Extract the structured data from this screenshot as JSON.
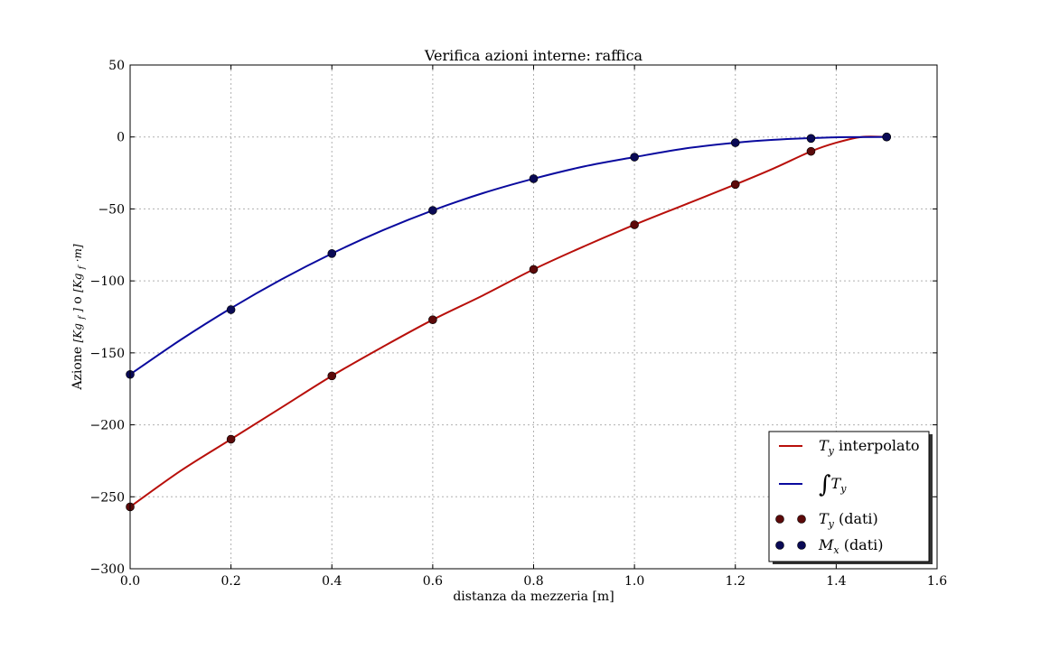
{
  "chart_data": {
    "type": "line",
    "title": "Verifica azioni interne: raffica",
    "xlabel": "distanza da mezzeria [m]",
    "ylabel": {
      "prefix": "Azione ",
      "unit1_base": "[Kg",
      "unit1_sub": "f",
      "unit1_end": "]",
      "middle": " o ",
      "unit2_base": "[Kg",
      "unit2_sub": "f",
      "unit2_end": "·m]"
    },
    "xlim": [
      0.0,
      1.6
    ],
    "ylim": [
      -300,
      50
    ],
    "xticks": [
      0.0,
      0.2,
      0.4,
      0.6,
      0.8,
      1.0,
      1.2,
      1.4,
      1.6
    ],
    "xtick_labels": [
      "0.0",
      "0.2",
      "0.4",
      "0.6",
      "0.8",
      "1.0",
      "1.2",
      "1.4",
      "1.6"
    ],
    "yticks": [
      50,
      0,
      -50,
      -100,
      -150,
      -200,
      -250,
      -300
    ],
    "ytick_labels": [
      "50",
      "0",
      "−50",
      "−100",
      "−150",
      "−200",
      "−250",
      "−300"
    ],
    "grid": true,
    "legend_position": "lower-right",
    "series": [
      {
        "name": "T_y interpolato",
        "kind": "line",
        "color": "#b80f0a",
        "x": [
          0.0,
          0.1,
          0.2,
          0.3,
          0.4,
          0.5,
          0.6,
          0.7,
          0.8,
          0.9,
          1.0,
          1.1,
          1.2,
          1.275,
          1.35,
          1.4,
          1.45,
          1.5
        ],
        "y": [
          -257,
          -232,
          -210,
          -188,
          -166,
          -146,
          -127,
          -110,
          -92,
          -76,
          -61,
          -47,
          -33,
          -22,
          -10,
          -4,
          0,
          0
        ]
      },
      {
        "name": "∫T_y",
        "kind": "line",
        "color": "#0a0a9e",
        "x": [
          0.0,
          0.1,
          0.2,
          0.3,
          0.4,
          0.5,
          0.6,
          0.7,
          0.8,
          0.9,
          1.0,
          1.1,
          1.2,
          1.275,
          1.35,
          1.425,
          1.5
        ],
        "y": [
          -165,
          -141,
          -119,
          -99,
          -81,
          -65,
          -51,
          -39,
          -29,
          -20.5,
          -14,
          -8,
          -4,
          -2,
          -0.8,
          -0.1,
          0
        ]
      },
      {
        "name": "T_y (dati)",
        "kind": "scatter",
        "color": "#5c0a0a",
        "x": [
          0.0,
          0.2,
          0.4,
          0.6,
          0.8,
          1.0,
          1.2,
          1.35,
          1.5
        ],
        "y": [
          -257,
          -210,
          -166,
          -127,
          -92,
          -61,
          -33,
          -10,
          0
        ]
      },
      {
        "name": "M_x (dati)",
        "kind": "scatter",
        "color": "#0a0a55",
        "x": [
          0.0,
          0.2,
          0.4,
          0.6,
          0.8,
          1.0,
          1.2,
          1.35,
          1.5
        ],
        "y": [
          -165,
          -120,
          -81,
          -51,
          -29,
          -14,
          -4,
          -1,
          0
        ]
      }
    ],
    "legend": [
      {
        "sym": "T",
        "sub": "y",
        "text": " interpolato"
      },
      {
        "sym": "∫T",
        "sub": "y",
        "text": ""
      },
      {
        "sym": "T",
        "sub": "y",
        "text": " (dati)"
      },
      {
        "sym": "M",
        "sub": "x",
        "text": " (dati)"
      }
    ]
  }
}
